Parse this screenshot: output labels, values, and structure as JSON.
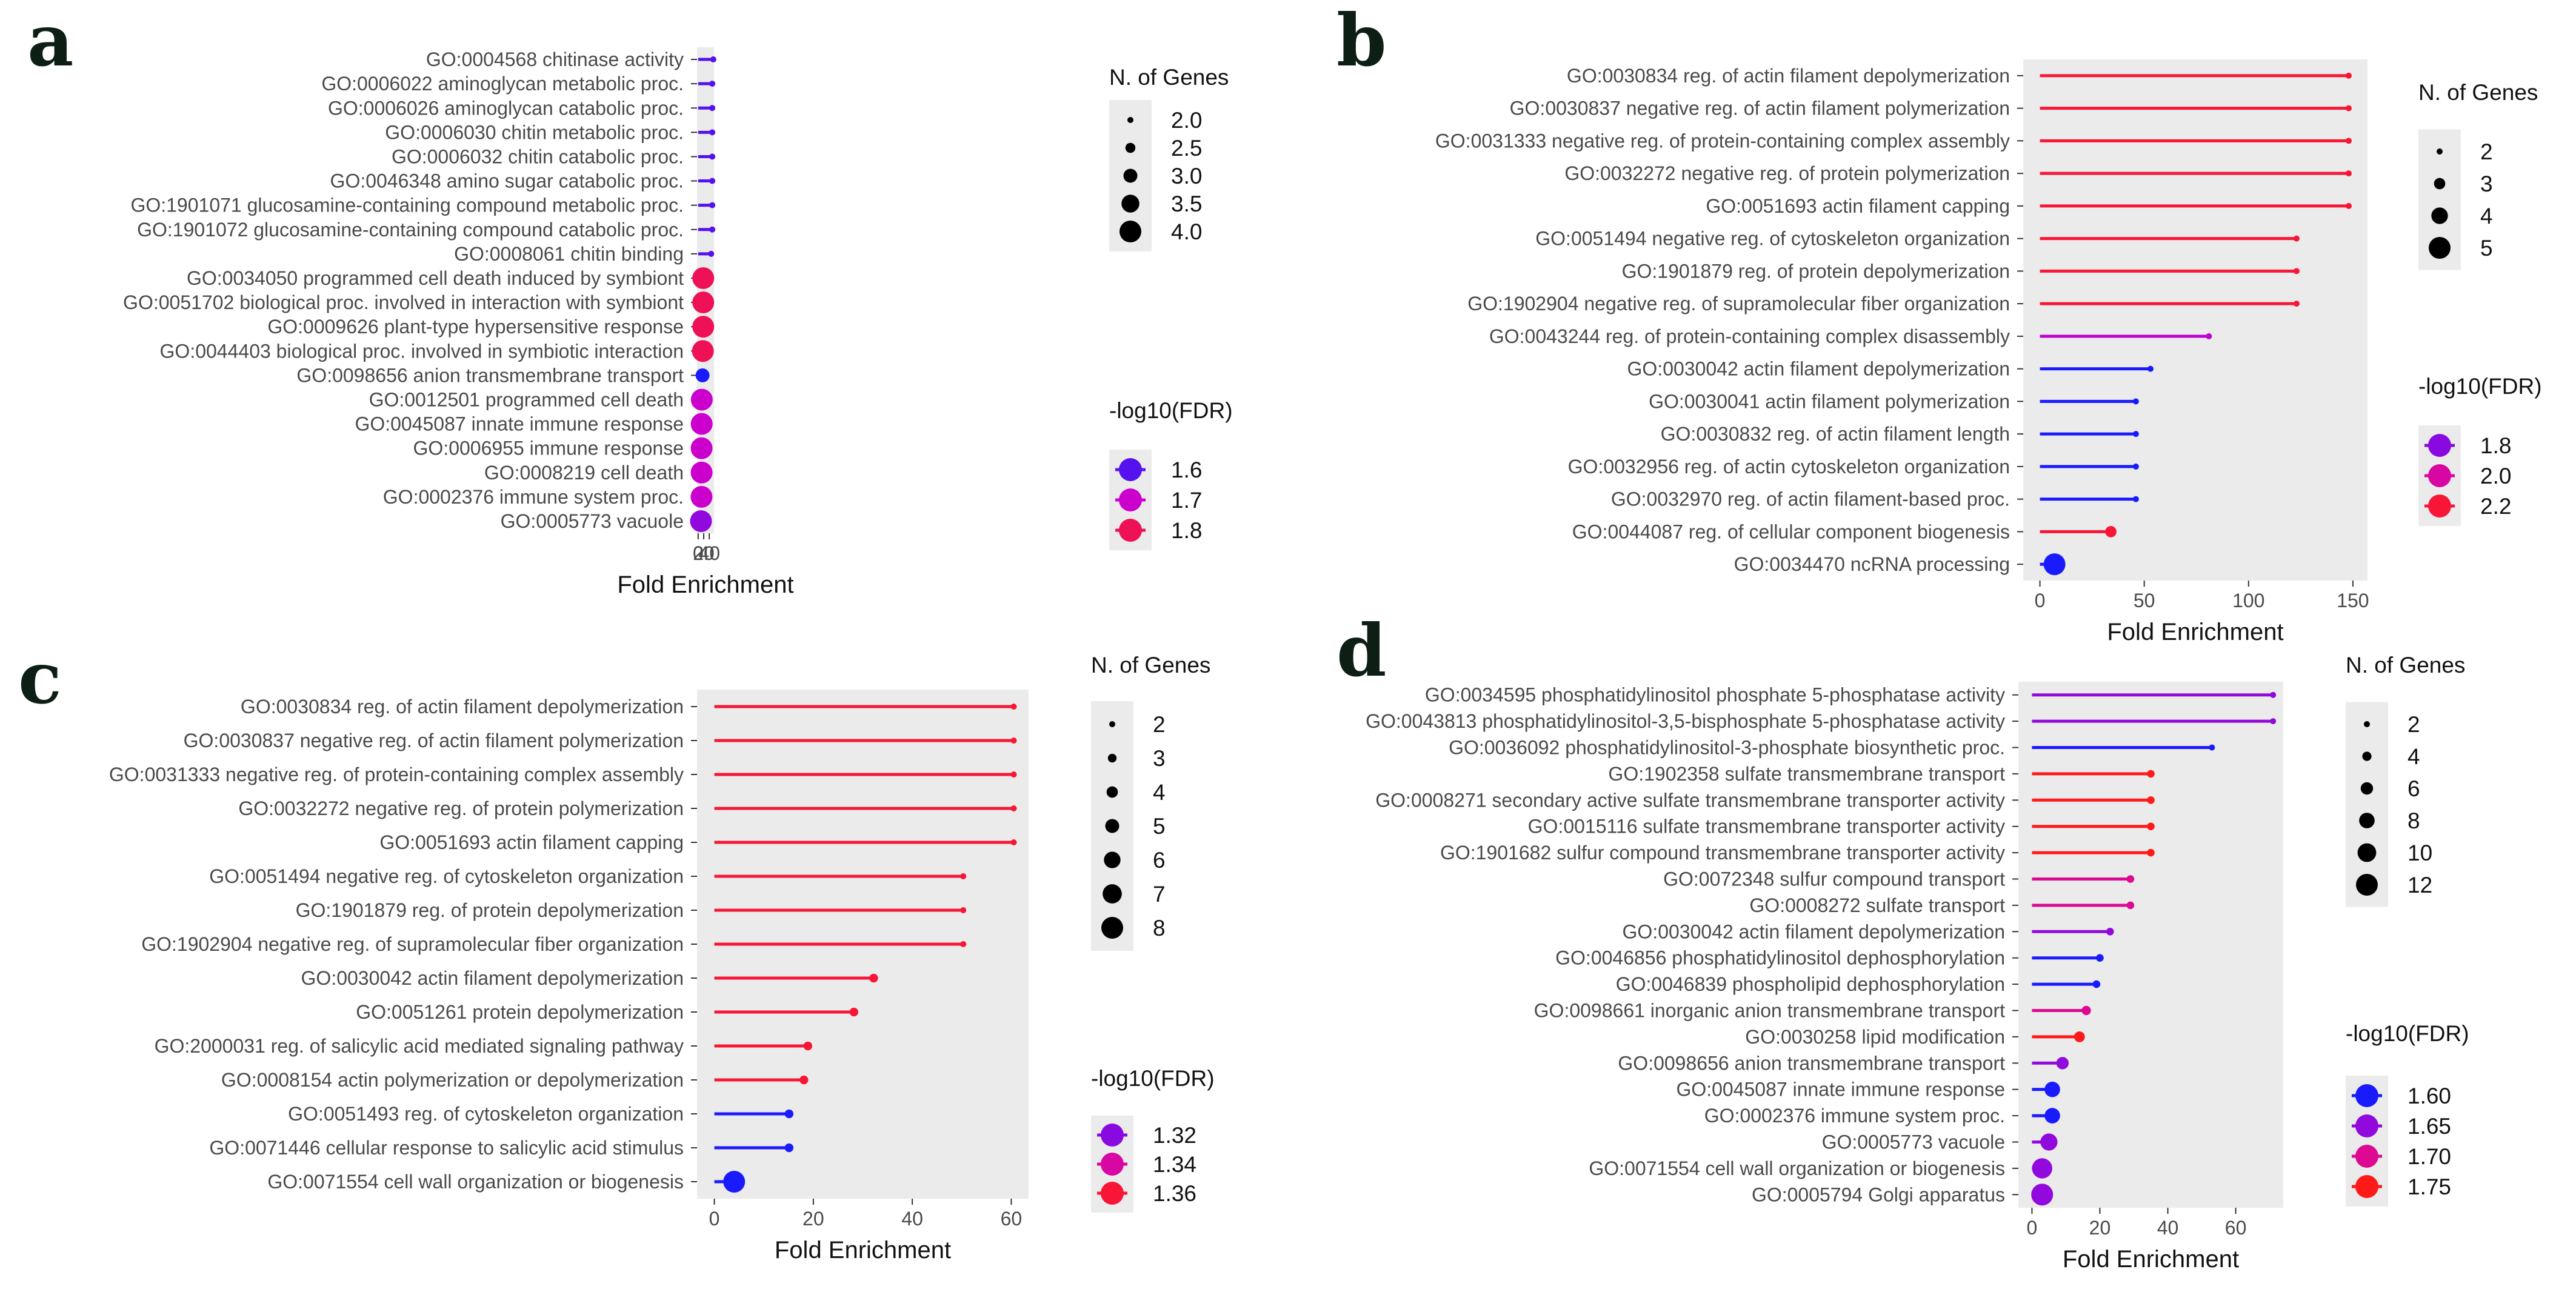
{
  "figure": {
    "colors": {
      "panel_bg": "#ebebeb",
      "low": "#1a1aff",
      "mid": "#cc00cc",
      "high": "#ff1a1a"
    }
  },
  "chart_data": [
    {
      "panel": "a",
      "type": "lollipop",
      "xlabel": "Fold Enrichment",
      "xlim": [
        -4,
        57
      ],
      "xticks": [
        0,
        20,
        40
      ],
      "size_legend": {
        "title": "N. of Genes",
        "values": [
          2.0,
          2.5,
          3.0,
          3.5,
          4.0
        ],
        "labels": [
          "2.0",
          "2.5",
          "3.0",
          "3.5",
          "4.0"
        ],
        "range": [
          2,
          4
        ]
      },
      "color_legend": {
        "title": "-log10(FDR)",
        "values": [
          1.6,
          1.7,
          1.8
        ],
        "labels": [
          "1.6",
          "1.7",
          "1.8"
        ],
        "range": [
          1.55,
          1.85
        ]
      },
      "terms": [
        {
          "label": "GO:0004568 chitinase activity",
          "fold": 54.5,
          "genes": 2,
          "fdr": 1.6
        },
        {
          "label": "GO:0006022 aminoglycan metabolic proc.",
          "fold": 50.8,
          "genes": 2,
          "fdr": 1.6
        },
        {
          "label": "GO:0006026 aminoglycan catabolic proc.",
          "fold": 50.8,
          "genes": 2,
          "fdr": 1.6
        },
        {
          "label": "GO:0006030 chitin metabolic proc.",
          "fold": 50.8,
          "genes": 2,
          "fdr": 1.6
        },
        {
          "label": "GO:0006032 chitin catabolic proc.",
          "fold": 50.8,
          "genes": 2,
          "fdr": 1.6
        },
        {
          "label": "GO:0046348 amino sugar catabolic proc.",
          "fold": 50.8,
          "genes": 2,
          "fdr": 1.6
        },
        {
          "label": "GO:1901071 glucosamine-containing compound metabolic proc.",
          "fold": 50.8,
          "genes": 2,
          "fdr": 1.6
        },
        {
          "label": "GO:1901072 glucosamine-containing compound catabolic proc.",
          "fold": 50.8,
          "genes": 2,
          "fdr": 1.6
        },
        {
          "label": "GO:0008061 chitin binding",
          "fold": 46.8,
          "genes": 2,
          "fdr": 1.6
        },
        {
          "label": "GO:0034050 programmed cell death induced by symbiont",
          "fold": 18.3,
          "genes": 4,
          "fdr": 1.8
        },
        {
          "label": "GO:0051702 biological proc. involved in interaction with symbiont",
          "fold": 18.3,
          "genes": 4,
          "fdr": 1.8
        },
        {
          "label": "GO:0009626 plant-type hypersensitive response",
          "fold": 18.3,
          "genes": 4,
          "fdr": 1.8
        },
        {
          "label": "GO:0044403 biological proc. involved in symbiotic interaction",
          "fold": 17.0,
          "genes": 4,
          "fdr": 1.8
        },
        {
          "label": "GO:0098656 anion transmembrane transport",
          "fold": 15.8,
          "genes": 3,
          "fdr": 1.55
        },
        {
          "label": "GO:0012501 programmed cell death",
          "fold": 13.1,
          "genes": 4,
          "fdr": 1.7
        },
        {
          "label": "GO:0045087 innate immune response",
          "fold": 12.7,
          "genes": 4,
          "fdr": 1.7
        },
        {
          "label": "GO:0006955 immune response",
          "fold": 12.4,
          "genes": 4,
          "fdr": 1.7
        },
        {
          "label": "GO:0008219 cell death",
          "fold": 12.4,
          "genes": 4,
          "fdr": 1.7
        },
        {
          "label": "GO:0002376 immune system proc.",
          "fold": 12.1,
          "genes": 4,
          "fdr": 1.7
        },
        {
          "label": "GO:0005773 vacuole",
          "fold": 10.1,
          "genes": 4,
          "fdr": 1.65
        }
      ]
    },
    {
      "panel": "b",
      "type": "lollipop",
      "xlabel": "Fold Enrichment",
      "xlim": [
        -8,
        157
      ],
      "xticks": [
        0,
        50,
        100,
        150
      ],
      "size_legend": {
        "title": "N. of Genes",
        "values": [
          2,
          3,
          4,
          5
        ],
        "labels": [
          "2",
          "3",
          "4",
          "5"
        ],
        "range": [
          2,
          5
        ]
      },
      "color_legend": {
        "title": "-log10(FDR)",
        "values": [
          1.8,
          2.0,
          2.2
        ],
        "labels": [
          "1.8",
          "2.0",
          "2.2"
        ],
        "range": [
          1.6,
          2.25
        ]
      },
      "terms": [
        {
          "label": "GO:0030834 reg. of actin filament depolymerization",
          "fold": 148,
          "genes": 2,
          "fdr": 2.2
        },
        {
          "label": "GO:0030837 negative reg. of actin filament polymerization",
          "fold": 148,
          "genes": 2,
          "fdr": 2.2
        },
        {
          "label": "GO:0031333 negative reg. of protein-containing complex assembly",
          "fold": 148,
          "genes": 2,
          "fdr": 2.2
        },
        {
          "label": "GO:0032272 negative reg. of protein polymerization",
          "fold": 148,
          "genes": 2,
          "fdr": 2.2
        },
        {
          "label": "GO:0051693 actin filament capping",
          "fold": 148,
          "genes": 2,
          "fdr": 2.2
        },
        {
          "label": "GO:0051494 negative reg. of cytoskeleton organization",
          "fold": 123,
          "genes": 2,
          "fdr": 2.2
        },
        {
          "label": "GO:1901879 reg. of protein depolymerization",
          "fold": 123,
          "genes": 2,
          "fdr": 2.2
        },
        {
          "label": "GO:1902904 negative reg. of supramolecular fiber organization",
          "fold": 123,
          "genes": 2,
          "fdr": 2.2
        },
        {
          "label": "GO:0043244 reg. of protein-containing complex disassembly",
          "fold": 81,
          "genes": 2,
          "fdr": 1.9
        },
        {
          "label": "GO:0030042 actin filament depolymerization",
          "fold": 53,
          "genes": 2,
          "fdr": 1.6
        },
        {
          "label": "GO:0030041 actin filament polymerization",
          "fold": 46,
          "genes": 2,
          "fdr": 1.6
        },
        {
          "label": "GO:0030832 reg. of actin filament length",
          "fold": 46,
          "genes": 2,
          "fdr": 1.6
        },
        {
          "label": "GO:0032956 reg. of actin cytoskeleton organization",
          "fold": 46,
          "genes": 2,
          "fdr": 1.6
        },
        {
          "label": "GO:0032970 reg. of actin filament-based proc.",
          "fold": 46,
          "genes": 2,
          "fdr": 1.6
        },
        {
          "label": "GO:0044087 reg. of cellular component biogenesis",
          "fold": 34,
          "genes": 3,
          "fdr": 2.2
        },
        {
          "label": "GO:0034470 ncRNA processing",
          "fold": 7,
          "genes": 5,
          "fdr": 1.6
        }
      ]
    },
    {
      "panel": "c",
      "type": "lollipop",
      "xlabel": "Fold Enrichment",
      "xlim": [
        -3.5,
        63.5
      ],
      "xticks": [
        0,
        20,
        40,
        60
      ],
      "size_legend": {
        "title": "N. of Genes",
        "values": [
          2,
          3,
          4,
          5,
          6,
          7,
          8
        ],
        "labels": [
          "2",
          "3",
          "4",
          "5",
          "6",
          "7",
          "8"
        ],
        "range": [
          2,
          8
        ]
      },
      "color_legend": {
        "title": "-log10(FDR)",
        "values": [
          1.32,
          1.34,
          1.36
        ],
        "labels": [
          "1.32",
          "1.34",
          "1.36"
        ],
        "range": [
          1.3,
          1.365
        ]
      },
      "terms": [
        {
          "label": "GO:0030834 reg. of actin filament depolymerization",
          "fold": 60.5,
          "genes": 2,
          "fdr": 1.36
        },
        {
          "label": "GO:0030837 negative reg. of actin filament polymerization",
          "fold": 60.5,
          "genes": 2,
          "fdr": 1.36
        },
        {
          "label": "GO:0031333 negative reg. of protein-containing complex assembly",
          "fold": 60.5,
          "genes": 2,
          "fdr": 1.36
        },
        {
          "label": "GO:0032272 negative reg. of protein polymerization",
          "fold": 60.5,
          "genes": 2,
          "fdr": 1.36
        },
        {
          "label": "GO:0051693 actin filament capping",
          "fold": 60.5,
          "genes": 2,
          "fdr": 1.36
        },
        {
          "label": "GO:0051494 negative reg. of cytoskeleton organization",
          "fold": 50.3,
          "genes": 2,
          "fdr": 1.36
        },
        {
          "label": "GO:1901879 reg. of protein depolymerization",
          "fold": 50.3,
          "genes": 2,
          "fdr": 1.36
        },
        {
          "label": "GO:1902904 negative reg. of supramolecular fiber organization",
          "fold": 50.3,
          "genes": 2,
          "fdr": 1.36
        },
        {
          "label": "GO:0030042 actin filament depolymerization",
          "fold": 32.2,
          "genes": 3,
          "fdr": 1.36
        },
        {
          "label": "GO:0051261 protein depolymerization",
          "fold": 28.2,
          "genes": 3,
          "fdr": 1.36
        },
        {
          "label": "GO:2000031 reg. of salicylic acid mediated signaling pathway",
          "fold": 18.9,
          "genes": 3,
          "fdr": 1.36
        },
        {
          "label": "GO:0008154 actin polymerization or depolymerization",
          "fold": 18.1,
          "genes": 3,
          "fdr": 1.36
        },
        {
          "label": "GO:0051493 reg. of cytoskeleton organization",
          "fold": 15.1,
          "genes": 3,
          "fdr": 1.3
        },
        {
          "label": "GO:0071446 cellular response to salicylic acid stimulus",
          "fold": 15.1,
          "genes": 3,
          "fdr": 1.3
        },
        {
          "label": "GO:0071554 cell wall organization or biogenesis",
          "fold": 4.0,
          "genes": 8,
          "fdr": 1.3
        }
      ]
    },
    {
      "panel": "d",
      "type": "lollipop",
      "xlabel": "Fold Enrichment",
      "xlim": [
        -4,
        74
      ],
      "xticks": [
        0,
        20,
        40,
        60
      ],
      "size_legend": {
        "title": "N. of Genes",
        "values": [
          2,
          4,
          6,
          8,
          10,
          12
        ],
        "labels": [
          "2",
          "4",
          "6",
          "8",
          "10",
          "12"
        ],
        "range": [
          2,
          12
        ]
      },
      "color_legend": {
        "title": "-log10(FDR)",
        "values": [
          1.6,
          1.65,
          1.7,
          1.75
        ],
        "labels": [
          "1.60",
          "1.65",
          "1.70",
          "1.75"
        ],
        "range": [
          1.6,
          1.75
        ]
      },
      "terms": [
        {
          "label": "GO:0034595 phosphatidylinositol phosphate 5-phosphatase activity",
          "fold": 71,
          "genes": 2,
          "fdr": 1.65
        },
        {
          "label": "GO:0043813 phosphatidylinositol-3,5-bisphosphate 5-phosphatase activity",
          "fold": 71,
          "genes": 2,
          "fdr": 1.65
        },
        {
          "label": "GO:0036092 phosphatidylinositol-3-phosphate biosynthetic proc.",
          "fold": 53,
          "genes": 2,
          "fdr": 1.6
        },
        {
          "label": "GO:1902358 sulfate transmembrane transport",
          "fold": 35,
          "genes": 3,
          "fdr": 1.75
        },
        {
          "label": "GO:0008271 secondary active sulfate transmembrane transporter activity",
          "fold": 35,
          "genes": 3,
          "fdr": 1.75
        },
        {
          "label": "GO:0015116 sulfate transmembrane transporter activity",
          "fold": 35,
          "genes": 3,
          "fdr": 1.75
        },
        {
          "label": "GO:1901682 sulfur compound transmembrane transporter activity",
          "fold": 35,
          "genes": 3,
          "fdr": 1.75
        },
        {
          "label": "GO:0072348 sulfur compound transport",
          "fold": 29,
          "genes": 3,
          "fdr": 1.7
        },
        {
          "label": "GO:0008272 sulfate transport",
          "fold": 29,
          "genes": 3,
          "fdr": 1.7
        },
        {
          "label": "GO:0030042 actin filament depolymerization",
          "fold": 23,
          "genes": 3,
          "fdr": 1.65
        },
        {
          "label": "GO:0046856 phosphatidylinositol dephosphorylation",
          "fold": 20,
          "genes": 3,
          "fdr": 1.6
        },
        {
          "label": "GO:0046839 phospholipid dephosphorylation",
          "fold": 19,
          "genes": 3,
          "fdr": 1.6
        },
        {
          "label": "GO:0098661 inorganic anion transmembrane transport",
          "fold": 16,
          "genes": 4,
          "fdr": 1.7
        },
        {
          "label": "GO:0030258 lipid modification",
          "fold": 14,
          "genes": 5,
          "fdr": 1.75
        },
        {
          "label": "GO:0098656 anion transmembrane transport",
          "fold": 9,
          "genes": 6,
          "fdr": 1.65
        },
        {
          "label": "GO:0045087 innate immune response",
          "fold": 6,
          "genes": 8,
          "fdr": 1.6
        },
        {
          "label": "GO:0002376 immune system proc.",
          "fold": 6,
          "genes": 8,
          "fdr": 1.6
        },
        {
          "label": "GO:0005773 vacuole",
          "fold": 5,
          "genes": 9,
          "fdr": 1.65
        },
        {
          "label": "GO:0071554 cell wall organization or biogenesis",
          "fold": 3,
          "genes": 11,
          "fdr": 1.65
        },
        {
          "label": "GO:0005794 Golgi apparatus",
          "fold": 3,
          "genes": 12,
          "fdr": 1.65
        }
      ]
    }
  ]
}
